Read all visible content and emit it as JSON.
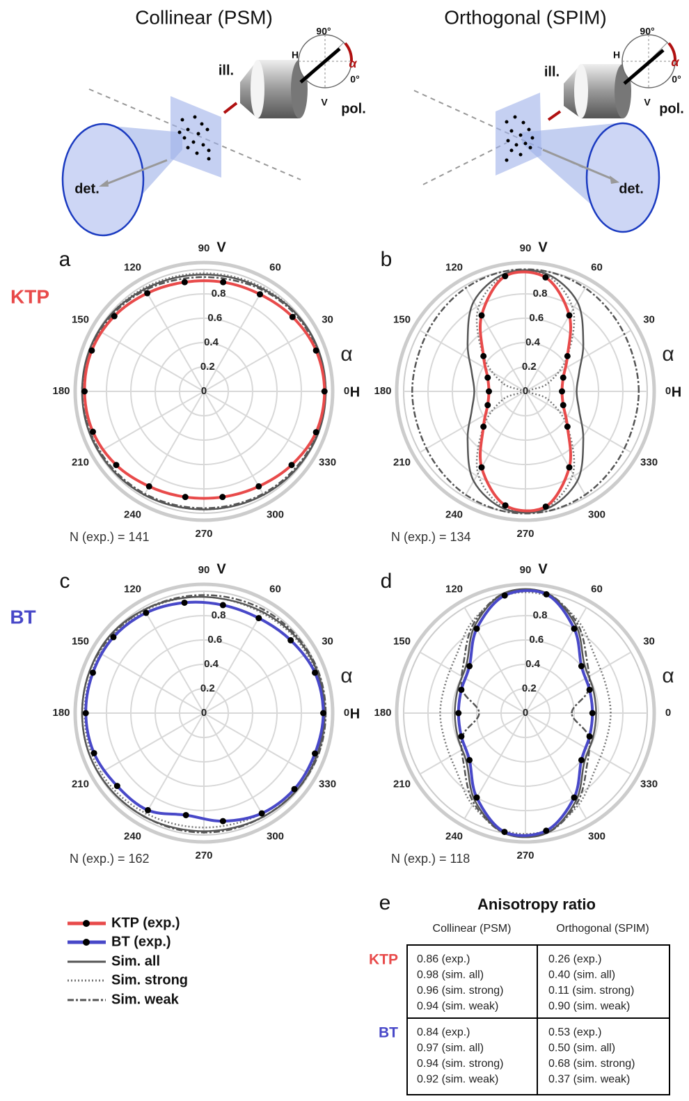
{
  "diagrams": [
    {
      "title": "Collinear (PSM)",
      "ill": "ill.",
      "pol": "pol.",
      "det": "det.",
      "deg90": "90°",
      "deg0": "0°",
      "h": "H",
      "v": "V",
      "alpha": "α"
    },
    {
      "title": "Orthogonal (SPIM)",
      "ill": "ill.",
      "pol": "pol.",
      "det": "det.",
      "deg90": "90°",
      "deg0": "0°",
      "h": "H",
      "v": "V",
      "alpha": "α"
    }
  ],
  "row_labels": [
    {
      "text": "KTP",
      "color": "#e84a4a"
    },
    {
      "text": "BT",
      "color": "#4848c8"
    }
  ],
  "chart_data": [
    {
      "type": "polar",
      "panel_label": "a",
      "annotation": "N (exp.) = 141",
      "alpha_label": "α",
      "axis_labels": {
        "v": "V",
        "h": "H"
      },
      "theta": [
        0,
        20,
        40,
        60,
        80,
        100,
        120,
        140,
        160,
        180,
        200,
        220,
        240,
        260,
        280,
        300,
        320,
        340
      ],
      "ylim": [
        0,
        1
      ],
      "yticks": [
        0,
        0.2,
        0.4,
        0.6,
        0.8
      ],
      "thetaticks": [
        0,
        30,
        60,
        90,
        120,
        150,
        180,
        210,
        240,
        270,
        300,
        330
      ],
      "grid": true,
      "series": [
        {
          "name": "KTP (exp.)",
          "color": "#e84a4a",
          "style": "solid",
          "markers": true,
          "values": [
            0.99,
            0.98,
            0.95,
            0.92,
            0.91,
            0.91,
            0.93,
            0.96,
            0.98,
            0.98,
            0.97,
            0.94,
            0.9,
            0.88,
            0.88,
            0.9,
            0.94,
            0.98
          ]
        },
        {
          "name": "Sim. all",
          "color": "#555555",
          "style": "solid",
          "values": [
            1.0,
            1.0,
            0.99,
            0.97,
            0.96,
            0.96,
            0.97,
            0.99,
            1.0,
            1.0,
            1.0,
            0.99,
            0.98,
            0.97,
            0.97,
            0.98,
            0.99,
            1.0
          ]
        },
        {
          "name": "Sim. strong",
          "color": "#777777",
          "style": "dotted",
          "values": [
            1.0,
            0.99,
            0.99,
            0.98,
            0.97,
            0.97,
            0.98,
            0.99,
            0.99,
            1.0,
            0.99,
            0.99,
            0.98,
            0.97,
            0.97,
            0.98,
            0.99,
            0.99
          ]
        },
        {
          "name": "Sim. weak",
          "color": "#555555",
          "style": "dashed",
          "values": [
            1.0,
            0.99,
            0.98,
            0.96,
            0.94,
            0.94,
            0.96,
            0.98,
            0.99,
            1.0,
            0.99,
            0.98,
            0.97,
            0.96,
            0.96,
            0.97,
            0.98,
            0.99
          ]
        }
      ]
    },
    {
      "type": "polar",
      "panel_label": "b",
      "annotation": "N (exp.) = 134",
      "alpha_label": "α",
      "axis_labels": {
        "v": "V",
        "h": "H"
      },
      "theta": [
        0,
        20,
        40,
        60,
        80,
        100,
        120,
        140,
        160,
        180,
        200,
        220,
        240,
        260,
        280,
        300,
        320,
        340
      ],
      "ylim": [
        0,
        1
      ],
      "yticks": [
        0,
        0.2,
        0.4,
        0.6,
        0.8
      ],
      "thetaticks": [
        0,
        30,
        60,
        90,
        120,
        150,
        180,
        210,
        240,
        270,
        300,
        330
      ],
      "grid": true,
      "series": [
        {
          "color": "#e84a4a",
          "style": "solid",
          "markers": true,
          "values": [
            0.3,
            0.33,
            0.45,
            0.72,
            0.95,
            0.96,
            0.72,
            0.45,
            0.33,
            0.3,
            0.33,
            0.45,
            0.72,
            0.95,
            0.96,
            0.72,
            0.45,
            0.33
          ]
        },
        {
          "color": "#555555",
          "style": "solid",
          "values": [
            0.42,
            0.47,
            0.62,
            0.85,
            0.98,
            0.98,
            0.85,
            0.62,
            0.47,
            0.42,
            0.47,
            0.62,
            0.85,
            0.98,
            0.98,
            0.85,
            0.62,
            0.47
          ]
        },
        {
          "color": "#777777",
          "style": "dotted",
          "values": [
            0.03,
            0.2,
            0.45,
            0.78,
            0.97,
            0.97,
            0.78,
            0.45,
            0.2,
            0.03,
            0.2,
            0.45,
            0.78,
            0.97,
            0.97,
            0.78,
            0.45,
            0.2
          ]
        },
        {
          "color": "#555555",
          "style": "dashed",
          "values": [
            0.93,
            0.93,
            0.95,
            0.98,
            1.0,
            1.0,
            0.98,
            0.95,
            0.93,
            0.93,
            0.93,
            0.95,
            0.98,
            1.0,
            1.0,
            0.98,
            0.95,
            0.93
          ]
        }
      ]
    },
    {
      "type": "polar",
      "panel_label": "c",
      "annotation": "N (exp.) = 162",
      "alpha_label": "α",
      "axis_labels": {
        "v": "V",
        "h": "H"
      },
      "theta": [
        0,
        20,
        40,
        60,
        80,
        100,
        120,
        140,
        160,
        180,
        200,
        220,
        240,
        260,
        280,
        300,
        320,
        340
      ],
      "ylim": [
        0,
        1
      ],
      "yticks": [
        0,
        0.2,
        0.4,
        0.6,
        0.8
      ],
      "thetaticks": [
        0,
        30,
        60,
        90,
        120,
        150,
        180,
        210,
        240,
        270,
        300,
        330
      ],
      "grid": true,
      "series": [
        {
          "name": "BT (exp.)",
          "color": "#4848c8",
          "style": "solid",
          "markers": true,
          "values": [
            0.98,
            0.97,
            0.93,
            0.9,
            0.9,
            0.92,
            0.95,
            0.97,
            0.97,
            0.97,
            0.96,
            0.93,
            0.92,
            0.85,
            0.9,
            0.95,
            0.97,
            0.97
          ]
        },
        {
          "color": "#555555",
          "style": "solid",
          "values": [
            0.99,
            0.99,
            0.98,
            0.96,
            0.95,
            0.96,
            0.98,
            1.0,
            1.0,
            1.0,
            1.0,
            0.99,
            0.98,
            0.97,
            0.97,
            0.98,
            0.99,
            0.99
          ]
        },
        {
          "color": "#777777",
          "style": "dotted",
          "values": [
            0.99,
            0.98,
            0.97,
            0.95,
            0.95,
            0.96,
            0.97,
            0.98,
            0.98,
            0.98,
            0.98,
            0.97,
            0.95,
            0.94,
            0.94,
            0.95,
            0.97,
            0.98
          ]
        },
        {
          "color": "#555555",
          "style": "dashed",
          "values": [
            1.0,
            1.0,
            0.99,
            0.98,
            0.97,
            0.97,
            0.98,
            0.99,
            1.0,
            1.0,
            1.0,
            0.99,
            0.98,
            0.98,
            0.98,
            0.98,
            0.99,
            1.0
          ]
        }
      ]
    },
    {
      "type": "polar",
      "panel_label": "d",
      "annotation": "N (exp.) = 118",
      "alpha_label": "α",
      "axis_labels": {
        "v": "V"
      },
      "theta": [
        0,
        20,
        40,
        60,
        80,
        100,
        120,
        140,
        160,
        180,
        200,
        220,
        240,
        260,
        280,
        300,
        320,
        340
      ],
      "ylim": [
        0,
        1
      ],
      "yticks": [
        0,
        0.2,
        0.4,
        0.6,
        0.8
      ],
      "thetaticks": [
        0,
        30,
        60,
        90,
        120,
        150,
        180,
        210,
        240,
        270,
        300,
        330
      ],
      "grid": true,
      "series": [
        {
          "color": "#4848c8",
          "style": "solid",
          "markers": true,
          "values": [
            0.55,
            0.56,
            0.6,
            0.8,
            0.99,
            0.98,
            0.8,
            0.6,
            0.56,
            0.55,
            0.56,
            0.6,
            0.8,
            0.99,
            0.98,
            0.8,
            0.6,
            0.56
          ]
        },
        {
          "color": "#555555",
          "style": "solid",
          "values": [
            0.58,
            0.59,
            0.63,
            0.83,
            1.0,
            1.0,
            0.83,
            0.63,
            0.59,
            0.58,
            0.59,
            0.63,
            0.83,
            1.0,
            1.0,
            0.83,
            0.63,
            0.59
          ]
        },
        {
          "color": "#777777",
          "style": "dotted",
          "values": [
            0.7,
            0.7,
            0.74,
            0.87,
            0.98,
            0.98,
            0.87,
            0.74,
            0.7,
            0.7,
            0.7,
            0.74,
            0.87,
            0.98,
            0.98,
            0.87,
            0.74,
            0.7
          ]
        },
        {
          "color": "#555555",
          "style": "dashed",
          "values": [
            0.38,
            0.55,
            0.66,
            0.85,
            1.0,
            1.0,
            0.85,
            0.66,
            0.55,
            0.38,
            0.55,
            0.66,
            0.85,
            1.0,
            1.0,
            0.85,
            0.66,
            0.55
          ]
        }
      ]
    }
  ],
  "table": {
    "panel_label": "e",
    "title": "Anisotropy ratio",
    "columns": [
      "Collinear (PSM)",
      "Orthogonal (SPIM)"
    ],
    "rows": [
      {
        "label": "KTP",
        "color": "#e84a4a",
        "cells": [
          [
            "0.86 (exp.)",
            "0.98 (sim. all)",
            "0.96 (sim. strong)",
            "0.94 (sim. weak)"
          ],
          [
            "0.26 (exp.)",
            "0.40 (sim. all)",
            "0.11 (sim. strong)",
            "0.90 (sim. weak)"
          ]
        ]
      },
      {
        "label": "BT",
        "color": "#4848c8",
        "cells": [
          [
            "0.84 (exp.)",
            "0.97 (sim. all)",
            "0.94 (sim. strong)",
            "0.92 (sim. weak)"
          ],
          [
            "0.53 (exp.)",
            "0.50 (sim. all)",
            "0.68 (sim. strong)",
            "0.37 (sim. weak)"
          ]
        ]
      }
    ]
  }
}
